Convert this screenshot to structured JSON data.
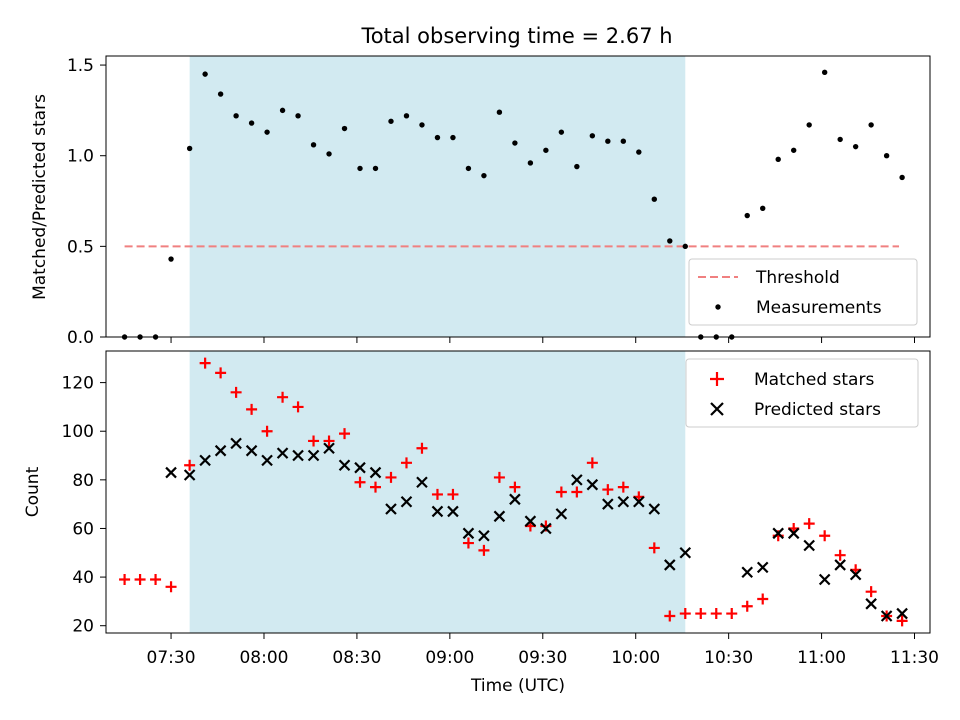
{
  "title": "Total observing time = 2.67 h",
  "colors": {
    "span": "#add8e6",
    "threshold": "#f08080",
    "matched": "#ff0000",
    "predicted": "#000000",
    "measurement": "#000000"
  },
  "chart_data": [
    {
      "type": "scatter",
      "title": "Total observing time = 2.67 h",
      "xlabel": "",
      "ylabel": "Matched/Predicted stars",
      "xlim": [
        "07:09",
        "11:35"
      ],
      "ylim": [
        0,
        1.55
      ],
      "yticks": [
        "0.0",
        "0.5",
        "1.0",
        "1.5"
      ],
      "highlight_span": [
        "07:36",
        "10:16"
      ],
      "legend_position": "lower right",
      "series": [
        {
          "name": "Threshold",
          "style": "dashed-line",
          "x": [
            "07:15",
            "11:25"
          ],
          "values": [
            0.5,
            0.5
          ]
        },
        {
          "name": "Measurements",
          "style": "dot",
          "x": [
            "07:15",
            "07:20",
            "07:25",
            "07:30",
            "07:36",
            "07:41",
            "07:46",
            "07:51",
            "07:56",
            "08:01",
            "08:06",
            "08:11",
            "08:16",
            "08:21",
            "08:26",
            "08:31",
            "08:36",
            "08:41",
            "08:46",
            "08:51",
            "08:56",
            "09:01",
            "09:06",
            "09:11",
            "09:16",
            "09:21",
            "09:26",
            "09:31",
            "09:36",
            "09:41",
            "09:46",
            "09:51",
            "09:56",
            "10:01",
            "10:06",
            "10:11",
            "10:16",
            "10:21",
            "10:26",
            "10:31",
            "10:36",
            "10:41",
            "10:46",
            "10:51",
            "10:56",
            "11:01",
            "11:06",
            "11:11",
            "11:16",
            "11:21",
            "11:26"
          ],
          "values": [
            0,
            0,
            0,
            0.43,
            1.04,
            1.45,
            1.34,
            1.22,
            1.18,
            1.13,
            1.25,
            1.22,
            1.06,
            1.01,
            1.15,
            0.93,
            0.93,
            1.19,
            1.22,
            1.17,
            1.1,
            1.1,
            0.93,
            0.89,
            1.24,
            1.07,
            0.96,
            1.03,
            1.13,
            0.94,
            1.11,
            1.08,
            1.08,
            1.02,
            0.76,
            0.53,
            0.5,
            0,
            0,
            0,
            0.67,
            0.71,
            0.98,
            1.03,
            1.17,
            1.46,
            1.09,
            1.05,
            1.17,
            1.0,
            0.88
          ]
        }
      ]
    },
    {
      "type": "scatter",
      "xlabel": "Time (UTC)",
      "ylabel": "Count",
      "xlim": [
        "07:09",
        "11:35"
      ],
      "ylim": [
        17,
        133
      ],
      "xticks": [
        "07:30",
        "08:00",
        "08:30",
        "09:00",
        "09:30",
        "10:00",
        "10:30",
        "11:00",
        "11:30"
      ],
      "yticks": [
        "20",
        "40",
        "60",
        "80",
        "100",
        "120"
      ],
      "highlight_span": [
        "07:36",
        "10:16"
      ],
      "legend_position": "upper right",
      "series": [
        {
          "name": "Matched stars",
          "marker": "+",
          "x": [
            "07:15",
            "07:20",
            "07:25",
            "07:30",
            "07:36",
            "07:41",
            "07:46",
            "07:51",
            "07:56",
            "08:01",
            "08:06",
            "08:11",
            "08:16",
            "08:21",
            "08:26",
            "08:31",
            "08:36",
            "08:41",
            "08:46",
            "08:51",
            "08:56",
            "09:01",
            "09:06",
            "09:11",
            "09:16",
            "09:21",
            "09:26",
            "09:31",
            "09:36",
            "09:41",
            "09:46",
            "09:51",
            "09:56",
            "10:01",
            "10:06",
            "10:11",
            "10:16",
            "10:21",
            "10:26",
            "10:31",
            "10:36",
            "10:41",
            "10:46",
            "10:51",
            "10:56",
            "11:01",
            "11:06",
            "11:11",
            "11:16",
            "11:21",
            "11:26"
          ],
          "values": [
            39,
            39,
            39,
            36,
            86,
            128,
            124,
            116,
            109,
            100,
            114,
            110,
            96,
            96,
            99,
            79,
            77,
            81,
            87,
            93,
            74,
            74,
            54,
            51,
            81,
            77,
            61,
            61,
            75,
            75,
            87,
            76,
            77,
            73,
            52,
            24,
            25,
            25,
            25,
            25,
            28,
            31,
            57,
            60,
            62,
            57,
            49,
            43,
            34,
            24,
            22
          ]
        },
        {
          "name": "Predicted stars",
          "marker": "x",
          "x": [
            "07:30",
            "07:36",
            "07:41",
            "07:46",
            "07:51",
            "07:56",
            "08:01",
            "08:06",
            "08:11",
            "08:16",
            "08:21",
            "08:26",
            "08:31",
            "08:36",
            "08:41",
            "08:46",
            "08:51",
            "08:56",
            "09:01",
            "09:06",
            "09:11",
            "09:16",
            "09:21",
            "09:26",
            "09:31",
            "09:36",
            "09:41",
            "09:46",
            "09:51",
            "09:56",
            "10:01",
            "10:06",
            "10:11",
            "10:16",
            "10:36",
            "10:41",
            "10:46",
            "10:51",
            "10:56",
            "11:01",
            "11:06",
            "11:11",
            "11:16",
            "11:21",
            "11:26"
          ],
          "values": [
            83,
            82,
            88,
            92,
            95,
            92,
            88,
            91,
            90,
            90,
            93,
            86,
            85,
            83,
            68,
            71,
            79,
            67,
            67,
            58,
            57,
            65,
            72,
            63,
            60,
            66,
            80,
            78,
            70,
            71,
            71,
            68,
            45,
            50,
            42,
            44,
            58,
            58,
            53,
            39,
            45,
            41,
            29,
            24,
            25
          ]
        }
      ]
    }
  ]
}
